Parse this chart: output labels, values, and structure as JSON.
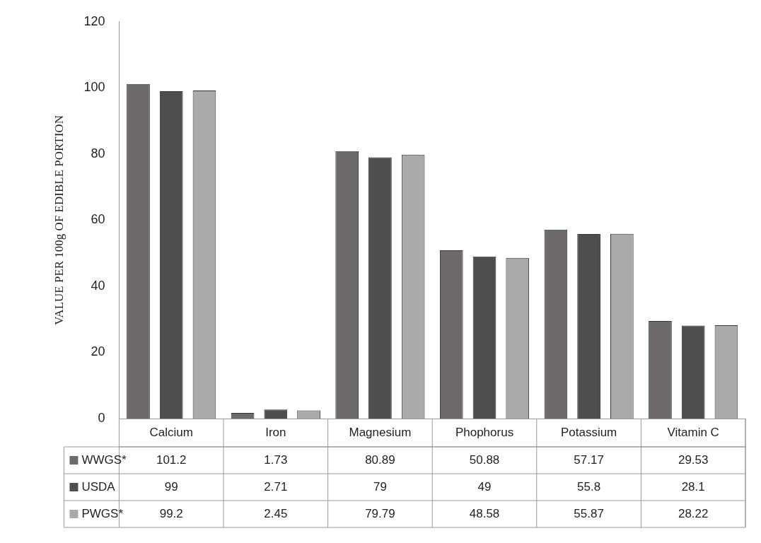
{
  "chart_data": {
    "type": "bar",
    "ylabel": "VALUE PER 100g OF EDIBLE PORTION",
    "categories": [
      "Calcium",
      "Iron",
      "Magnesium",
      "Phophorus",
      "Potassium",
      "Vitamin C"
    ],
    "series": [
      {
        "name": "WWGS*",
        "color": "#6e6a6a",
        "values": [
          101.2,
          1.73,
          80.89,
          50.88,
          57.17,
          29.53
        ]
      },
      {
        "name": "USDA",
        "color": "#4e4e4e",
        "values": [
          99,
          2.71,
          79,
          49,
          55.8,
          28.1
        ]
      },
      {
        "name": "PWGS*",
        "color": "#aaaaaa",
        "values": [
          99.2,
          2.45,
          79.79,
          48.58,
          55.87,
          28.22
        ]
      }
    ],
    "ylim": [
      0,
      120
    ],
    "yticks": [
      0,
      20,
      40,
      60,
      80,
      100,
      120
    ],
    "grid": false,
    "legend": "bottom left",
    "data_labels": true
  }
}
